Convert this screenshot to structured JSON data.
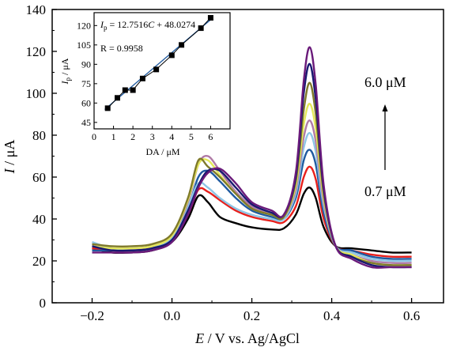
{
  "chart_data": [
    {
      "type": "line",
      "title": "",
      "xlabel_var": "E",
      "xlabel_rest": " / V vs. Ag/AgCl",
      "ylabel_var": "I",
      "ylabel_rest": " / μA",
      "xlim": [
        -0.3,
        0.68
      ],
      "ylim": [
        0,
        140
      ],
      "xticks": [
        -0.2,
        0.0,
        0.2,
        0.4,
        0.6
      ],
      "xtick_labels": [
        "−0.2",
        "0.0",
        "0.2",
        "0.4",
        "0.6"
      ],
      "yticks": [
        0,
        20,
        40,
        60,
        80,
        100,
        120,
        140
      ],
      "ytick_labels": [
        "0",
        "20",
        "40",
        "60",
        "80",
        "100",
        "120",
        "140"
      ],
      "grid": false,
      "annotations": {
        "top": "6.0 μM",
        "bottom": "0.7 μM"
      },
      "series": [
        {
          "color": "#000000",
          "x": [
            -0.2,
            -0.15,
            -0.1,
            -0.05,
            0.0,
            0.04,
            0.066,
            0.09,
            0.12,
            0.16,
            0.2,
            0.25,
            0.28,
            0.31,
            0.33,
            0.345,
            0.36,
            0.38,
            0.41,
            0.45,
            0.5,
            0.55,
            0.6
          ],
          "y": [
            26,
            24,
            24,
            25,
            29,
            40,
            51,
            48,
            41,
            38,
            36,
            35,
            35.5,
            42,
            52,
            55,
            50,
            36,
            27,
            26,
            25,
            24,
            24
          ]
        },
        {
          "color": "#e8201c",
          "x": [
            -0.2,
            -0.15,
            -0.1,
            -0.05,
            0.0,
            0.04,
            0.066,
            0.09,
            0.12,
            0.16,
            0.2,
            0.25,
            0.28,
            0.31,
            0.33,
            0.345,
            0.36,
            0.38,
            0.41,
            0.45,
            0.5,
            0.55,
            0.6
          ],
          "y": [
            26,
            25,
            25,
            26,
            30,
            42,
            54,
            53,
            49,
            44,
            41,
            39,
            38.5,
            46,
            60,
            65,
            59,
            40,
            27,
            25,
            23,
            22,
            22
          ]
        },
        {
          "color": "#1f5aa0",
          "x": [
            -0.2,
            -0.15,
            -0.1,
            -0.05,
            0.0,
            0.04,
            0.066,
            0.09,
            0.12,
            0.16,
            0.2,
            0.25,
            0.28,
            0.31,
            0.33,
            0.345,
            0.36,
            0.38,
            0.41,
            0.45,
            0.5,
            0.55,
            0.6
          ],
          "y": [
            25,
            25,
            25,
            26,
            31,
            45,
            60,
            63,
            58,
            50,
            44,
            41,
            40,
            50,
            68,
            73,
            66,
            43,
            27,
            25,
            22,
            21,
            21
          ]
        },
        {
          "color": "#8ec6e6",
          "x": [
            -0.2,
            -0.15,
            -0.1,
            -0.05,
            0.0,
            0.04,
            0.066,
            0.09,
            0.12,
            0.16,
            0.2,
            0.25,
            0.28,
            0.31,
            0.33,
            0.345,
            0.36,
            0.38,
            0.41,
            0.45,
            0.5,
            0.55,
            0.6
          ],
          "y": [
            29,
            26,
            26,
            27,
            31,
            46,
            57,
            55,
            50,
            45,
            42,
            40,
            40,
            52,
            74,
            81,
            72,
            46,
            27,
            24,
            21,
            20,
            20
          ]
        },
        {
          "color": "#b07aa6",
          "x": [
            -0.2,
            -0.15,
            -0.1,
            -0.05,
            0.0,
            0.04,
            0.066,
            0.09,
            0.12,
            0.16,
            0.2,
            0.25,
            0.28,
            0.31,
            0.33,
            0.345,
            0.36,
            0.38,
            0.41,
            0.45,
            0.5,
            0.55,
            0.6
          ],
          "y": [
            27,
            26,
            26,
            27,
            32,
            48,
            66,
            70,
            63,
            53,
            46,
            42,
            41,
            54,
            79,
            87,
            77,
            48,
            27,
            23,
            20,
            19,
            19
          ]
        },
        {
          "color": "#e4e85a",
          "x": [
            -0.2,
            -0.15,
            -0.1,
            -0.05,
            0.0,
            0.04,
            0.066,
            0.09,
            0.12,
            0.16,
            0.2,
            0.25,
            0.28,
            0.31,
            0.33,
            0.345,
            0.36,
            0.38,
            0.41,
            0.45,
            0.5,
            0.55,
            0.6
          ],
          "y": [
            27,
            26,
            26,
            27,
            32,
            49,
            66,
            68,
            61,
            52,
            45,
            42,
            41,
            56,
            85,
            95,
            83,
            50,
            27,
            23,
            19,
            18,
            18
          ]
        },
        {
          "color": "#7f7a2a",
          "x": [
            -0.2,
            -0.15,
            -0.1,
            -0.05,
            0.0,
            0.04,
            0.066,
            0.09,
            0.12,
            0.16,
            0.2,
            0.25,
            0.28,
            0.31,
            0.33,
            0.345,
            0.36,
            0.38,
            0.41,
            0.45,
            0.5,
            0.55,
            0.6
          ],
          "y": [
            28,
            27,
            27,
            28,
            33,
            50,
            68,
            65,
            60,
            52,
            45,
            42,
            41,
            58,
            92,
            105,
            90,
            52,
            27,
            22,
            19,
            18,
            18
          ]
        },
        {
          "color": "#191970",
          "x": [
            -0.2,
            -0.15,
            -0.1,
            -0.05,
            0.0,
            0.04,
            0.066,
            0.09,
            0.12,
            0.16,
            0.2,
            0.25,
            0.28,
            0.31,
            0.33,
            0.345,
            0.36,
            0.38,
            0.41,
            0.45,
            0.5,
            0.55,
            0.6
          ],
          "y": [
            27,
            25,
            25,
            26,
            30,
            44,
            56,
            63,
            63,
            55,
            47,
            43,
            42,
            60,
            100,
            114,
            97,
            54,
            27,
            22,
            18,
            17,
            17
          ]
        },
        {
          "color": "#6a1a7a",
          "x": [
            -0.2,
            -0.15,
            -0.1,
            -0.05,
            0.0,
            0.04,
            0.066,
            0.09,
            0.12,
            0.16,
            0.2,
            0.25,
            0.28,
            0.31,
            0.33,
            0.345,
            0.36,
            0.38,
            0.41,
            0.45,
            0.5,
            0.55,
            0.6
          ],
          "y": [
            24,
            24,
            24,
            25,
            29,
            42,
            55,
            62,
            64,
            57,
            48,
            44,
            42,
            62,
            106,
            122,
            104,
            56,
            27,
            21,
            17,
            17,
            17
          ]
        }
      ]
    },
    {
      "type": "scatter",
      "title": "",
      "xlabel": "DA / μM",
      "ylabel_var": "I",
      "ylabel_sub": "p",
      "ylabel_rest": " / μA",
      "xlim": [
        0,
        7
      ],
      "ylim": [
        40,
        130
      ],
      "xticks": [
        0,
        1,
        2,
        3,
        4,
        5,
        6
      ],
      "xtick_labels": [
        "0",
        "1",
        "2",
        "3",
        "4",
        "5",
        "6"
      ],
      "yticks": [
        45,
        60,
        75,
        90,
        105,
        120
      ],
      "ytick_labels": [
        "45",
        "60",
        "75",
        "90",
        "105",
        "120"
      ],
      "equation_var": "I",
      "equation_sub": "p",
      "equation_rest": " = 12.7516",
      "equation_var2": "C",
      "equation_tail": " + 48.0274",
      "r_text": "R = 0.9958",
      "points": {
        "x": [
          0.7,
          1.2,
          1.6,
          2.0,
          2.5,
          3.2,
          4.0,
          4.5,
          5.5,
          6.0
        ],
        "y": [
          56,
          64,
          70,
          70,
          79,
          86,
          97,
          105,
          118,
          126
        ]
      },
      "fit": {
        "slope": 12.7516,
        "intercept": 48.0274,
        "x_range": [
          0.55,
          6.05
        ],
        "color": "#1f5aa0"
      }
    }
  ]
}
